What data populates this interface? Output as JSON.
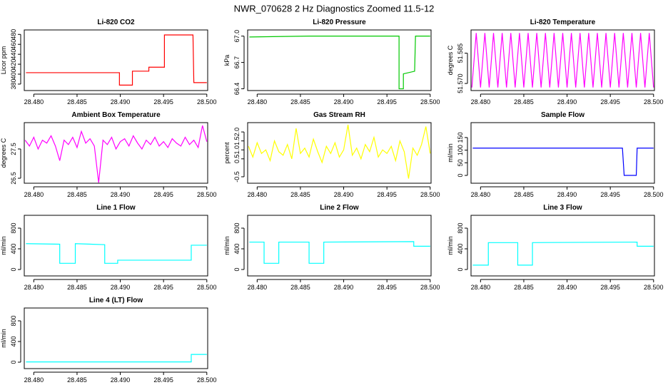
{
  "title": "NWR_070628  2 Hz Diagnostics Zoomed 11.5-12",
  "chart_data": [
    {
      "type": "line",
      "title": "Li-820 CO2",
      "ylabel": "Licor ppm",
      "color": "#ff0000",
      "x": [
        28.4791,
        28.4899,
        28.4899,
        28.4914,
        28.4914,
        28.4933,
        28.4933,
        28.4951,
        28.4951,
        28.4984,
        28.4985,
        28.5
      ],
      "values": [
        403,
        403,
        378,
        378,
        406,
        406,
        414,
        414,
        479,
        479,
        383,
        383
      ],
      "xlim": [
        28.4789,
        28.5001
      ],
      "ylim": [
        367,
        489
      ],
      "xticks": [
        {
          "value": 28.48,
          "label": "28.480"
        },
        28.485,
        {
          "value": 28.49,
          "label": "28.490"
        },
        28.495,
        {
          "value": 28.5,
          "label": "28.500"
        }
      ],
      "yticks": [
        380,
        400,
        420,
        440,
        460,
        480
      ]
    },
    {
      "type": "line",
      "title": "Li-820 Pressure",
      "ylabel": "kPa",
      "color": "#00c800",
      "x": [
        28.4791,
        28.486,
        28.4964,
        28.4964,
        28.4969,
        28.4969,
        28.4982,
        28.4983,
        28.5
      ],
      "values": [
        66.99,
        67.0,
        67.0,
        66.4,
        66.4,
        66.57,
        66.6,
        67.0,
        67.0
      ],
      "xlim": [
        28.4789,
        28.5001
      ],
      "ylim": [
        66.38,
        67.07
      ],
      "xticks": [
        {
          "value": 28.48,
          "label": "28.480"
        },
        28.485,
        {
          "value": 28.49,
          "label": "28.490"
        },
        28.495,
        {
          "value": 28.5,
          "label": "28.500"
        }
      ],
      "yticks": [
        66.4,
        66.7,
        {
          "value": 67,
          "label": "67.0"
        }
      ]
    },
    {
      "type": "line",
      "title": "Li-820 Temperature",
      "ylabel": "degrees C",
      "color": "#ff00ff",
      "x": [
        28.479,
        28.4795,
        28.48,
        28.4805,
        28.481,
        28.4815,
        28.482,
        28.4825,
        28.483,
        28.4835,
        28.484,
        28.4845,
        28.485,
        28.4855,
        28.486,
        28.4865,
        28.487,
        28.4875,
        28.488,
        28.4885,
        28.489,
        28.4895,
        28.49,
        28.4905,
        28.491,
        28.4915,
        28.492,
        28.4925,
        28.493,
        28.4935,
        28.494,
        28.4945,
        28.495,
        28.4955,
        28.496,
        28.4965,
        28.497,
        28.4975,
        28.498,
        28.4985,
        28.499,
        28.4995,
        28.5
      ],
      "values": [
        51.568,
        51.595,
        51.568,
        51.595,
        51.568,
        51.595,
        51.568,
        51.595,
        51.568,
        51.595,
        51.568,
        51.595,
        51.568,
        51.595,
        51.568,
        51.595,
        51.568,
        51.595,
        51.568,
        51.595,
        51.568,
        51.595,
        51.568,
        51.595,
        51.568,
        51.595,
        51.568,
        51.595,
        51.568,
        51.595,
        51.568,
        51.595,
        51.568,
        51.595,
        51.568,
        51.595,
        51.568,
        51.595,
        51.568,
        51.595,
        51.568,
        51.595,
        51.568
      ],
      "xlim": [
        28.4789,
        28.5001
      ],
      "ylim": [
        51.5665,
        51.5965
      ],
      "xticks": [
        {
          "value": 28.48,
          "label": "28.480"
        },
        28.485,
        {
          "value": 28.49,
          "label": "28.490"
        },
        28.495,
        {
          "value": 28.5,
          "label": "28.500"
        }
      ],
      "yticks": [
        {
          "value": 51.57,
          "label": "51.570"
        },
        51.585
      ]
    },
    {
      "type": "line",
      "title": "Ambient Box Temperature",
      "ylabel": "degrees C",
      "color": "#ff00ff",
      "x": [
        28.479,
        28.4795,
        28.48,
        28.4805,
        28.481,
        28.4815,
        28.482,
        28.4825,
        28.483,
        28.4835,
        28.484,
        28.4845,
        28.485,
        28.4855,
        28.486,
        28.4865,
        28.487,
        28.4875,
        28.488,
        28.4885,
        28.489,
        28.4895,
        28.49,
        28.4905,
        28.491,
        28.4915,
        28.492,
        28.4925,
        28.493,
        28.4935,
        28.494,
        28.4945,
        28.495,
        28.4955,
        28.496,
        28.4965,
        28.497,
        28.4975,
        28.498,
        28.4985,
        28.499,
        28.4995,
        28.5
      ],
      "values": [
        27.8,
        27.6,
        27.9,
        27.5,
        27.8,
        27.7,
        27.95,
        27.6,
        27.1,
        27.8,
        27.65,
        27.9,
        27.55,
        28.1,
        27.7,
        27.85,
        27.6,
        26.35,
        27.8,
        27.65,
        27.9,
        27.5,
        27.75,
        27.85,
        27.6,
        27.95,
        27.7,
        27.5,
        27.8,
        27.65,
        27.9,
        27.6,
        27.75,
        27.55,
        27.85,
        27.7,
        27.6,
        27.9,
        27.65,
        27.8,
        27.55,
        28.3,
        27.75
      ],
      "xlim": [
        28.4789,
        28.5001
      ],
      "ylim": [
        26.33,
        28.4
      ],
      "xticks": [
        {
          "value": 28.48,
          "label": "28.480"
        },
        28.485,
        {
          "value": 28.49,
          "label": "28.490"
        },
        28.495,
        {
          "value": 28.5,
          "label": "28.500"
        }
      ],
      "yticks": [
        26.5,
        27.5
      ]
    },
    {
      "type": "line",
      "title": "Gas Stream RH",
      "ylabel": "percent",
      "color": "#ffff00",
      "x": [
        28.479,
        28.4795,
        28.48,
        28.4805,
        28.481,
        28.4815,
        28.482,
        28.4825,
        28.483,
        28.4835,
        28.484,
        28.4845,
        28.485,
        28.4855,
        28.486,
        28.4865,
        28.487,
        28.4875,
        28.488,
        28.4885,
        28.489,
        28.4895,
        28.49,
        28.4905,
        28.491,
        28.4915,
        28.492,
        28.4925,
        28.493,
        28.4935,
        28.494,
        28.4945,
        28.495,
        28.4955,
        28.496,
        28.4965,
        28.497,
        28.4975,
        28.498,
        28.4985,
        28.499,
        28.4995,
        28.5
      ],
      "values": [
        1.2,
        0.6,
        1.4,
        0.8,
        1.0,
        0.4,
        1.5,
        0.9,
        0.7,
        1.3,
        0.5,
        2.2,
        0.8,
        1.1,
        0.6,
        1.6,
        0.9,
        0.3,
        1.2,
        0.8,
        1.4,
        0.6,
        1.0,
        2.4,
        0.7,
        1.1,
        0.5,
        1.3,
        0.9,
        1.7,
        0.6,
        1.0,
        0.8,
        1.2,
        0.4,
        1.5,
        0.9,
        -0.6,
        1.1,
        0.7,
        1.3,
        2.3,
        0.8
      ],
      "xlim": [
        28.4789,
        28.5001
      ],
      "ylim": [
        -0.86,
        2.52
      ],
      "xticks": [
        {
          "value": 28.48,
          "label": "28.480"
        },
        28.485,
        {
          "value": 28.49,
          "label": "28.490"
        },
        28.495,
        {
          "value": 28.5,
          "label": "28.500"
        }
      ],
      "yticks": [
        -0.5,
        0.5,
        {
          "value": 1,
          "label": "1.0"
        },
        1.5,
        {
          "value": 2,
          "label": "2.0"
        }
      ]
    },
    {
      "type": "line",
      "title": "Sample Flow",
      "ylabel": "ml/min",
      "color": "#0000ff",
      "x": [
        28.4791,
        28.4964,
        28.4966,
        28.498,
        28.4981,
        28.5
      ],
      "values": [
        108,
        108,
        0,
        0,
        108,
        108
      ],
      "xlim": [
        28.4789,
        28.5001
      ],
      "ylim": [
        -31,
        209
      ],
      "xticks": [
        {
          "value": 28.48,
          "label": "28.480"
        },
        28.485,
        {
          "value": 28.49,
          "label": "28.490"
        },
        28.495,
        {
          "value": 28.5,
          "label": "28.500"
        }
      ],
      "yticks": [
        0,
        50,
        100,
        150
      ]
    },
    {
      "type": "line",
      "title": "Line 1 Flow",
      "ylabel": "ml/min",
      "color": "#00ffff",
      "x": [
        28.4791,
        28.483,
        28.483,
        28.4848,
        28.4848,
        28.4882,
        28.4882,
        28.4897,
        28.4897,
        28.4982,
        28.4982,
        28.5
      ],
      "values": [
        500,
        490,
        120,
        120,
        500,
        480,
        120,
        120,
        180,
        180,
        470,
        470
      ],
      "xlim": [
        28.4789,
        28.5001
      ],
      "ylim": [
        -124,
        1048
      ],
      "xticks": [
        {
          "value": 28.48,
          "label": "28.480"
        },
        28.485,
        {
          "value": 28.49,
          "label": "28.490"
        },
        28.495,
        {
          "value": 28.5,
          "label": "28.500"
        }
      ],
      "yticks": [
        0,
        400,
        800
      ]
    },
    {
      "type": "line",
      "title": "Line 2 Flow",
      "ylabel": "ml/min",
      "color": "#00ffff",
      "x": [
        28.4791,
        28.4808,
        28.4808,
        28.4825,
        28.4825,
        28.486,
        28.486,
        28.4877,
        28.4877,
        28.4981,
        28.4981,
        28.5
      ],
      "values": [
        530,
        530,
        120,
        120,
        530,
        530,
        120,
        120,
        530,
        540,
        450,
        450
      ],
      "xlim": [
        28.4789,
        28.5001
      ],
      "ylim": [
        -124,
        1048
      ],
      "xticks": [
        {
          "value": 28.48,
          "label": "28.480"
        },
        28.485,
        {
          "value": 28.49,
          "label": "28.490"
        },
        28.495,
        {
          "value": 28.5,
          "label": "28.500"
        }
      ],
      "yticks": [
        0,
        400,
        800
      ]
    },
    {
      "type": "line",
      "title": "Line 3 Flow",
      "ylabel": "ml/min",
      "color": "#00ffff",
      "x": [
        28.4791,
        28.4809,
        28.4809,
        28.4843,
        28.4843,
        28.486,
        28.486,
        28.4981,
        28.4981,
        28.5
      ],
      "values": [
        85,
        85,
        520,
        520,
        85,
        85,
        520,
        530,
        450,
        450
      ],
      "xlim": [
        28.4789,
        28.5001
      ],
      "ylim": [
        -124,
        1048
      ],
      "xticks": [
        {
          "value": 28.48,
          "label": "28.480"
        },
        28.485,
        {
          "value": 28.49,
          "label": "28.490"
        },
        28.495,
        {
          "value": 28.5,
          "label": "28.500"
        }
      ],
      "yticks": [
        0,
        400,
        800
      ]
    },
    {
      "type": "line",
      "title": "Line 4 (LT) Flow",
      "ylabel": "ml/min",
      "color": "#00ffff",
      "x": [
        28.4791,
        28.4982,
        28.4982,
        28.5
      ],
      "values": [
        5,
        5,
        150,
        150
      ],
      "xlim": [
        28.4789,
        28.5001
      ],
      "ylim": [
        -124,
        1048
      ],
      "xticks": [
        {
          "value": 28.48,
          "label": "28.480"
        },
        28.485,
        {
          "value": 28.49,
          "label": "28.490"
        },
        28.495,
        {
          "value": 28.5,
          "label": "28.500"
        }
      ],
      "yticks": [
        0,
        400,
        800
      ]
    }
  ]
}
